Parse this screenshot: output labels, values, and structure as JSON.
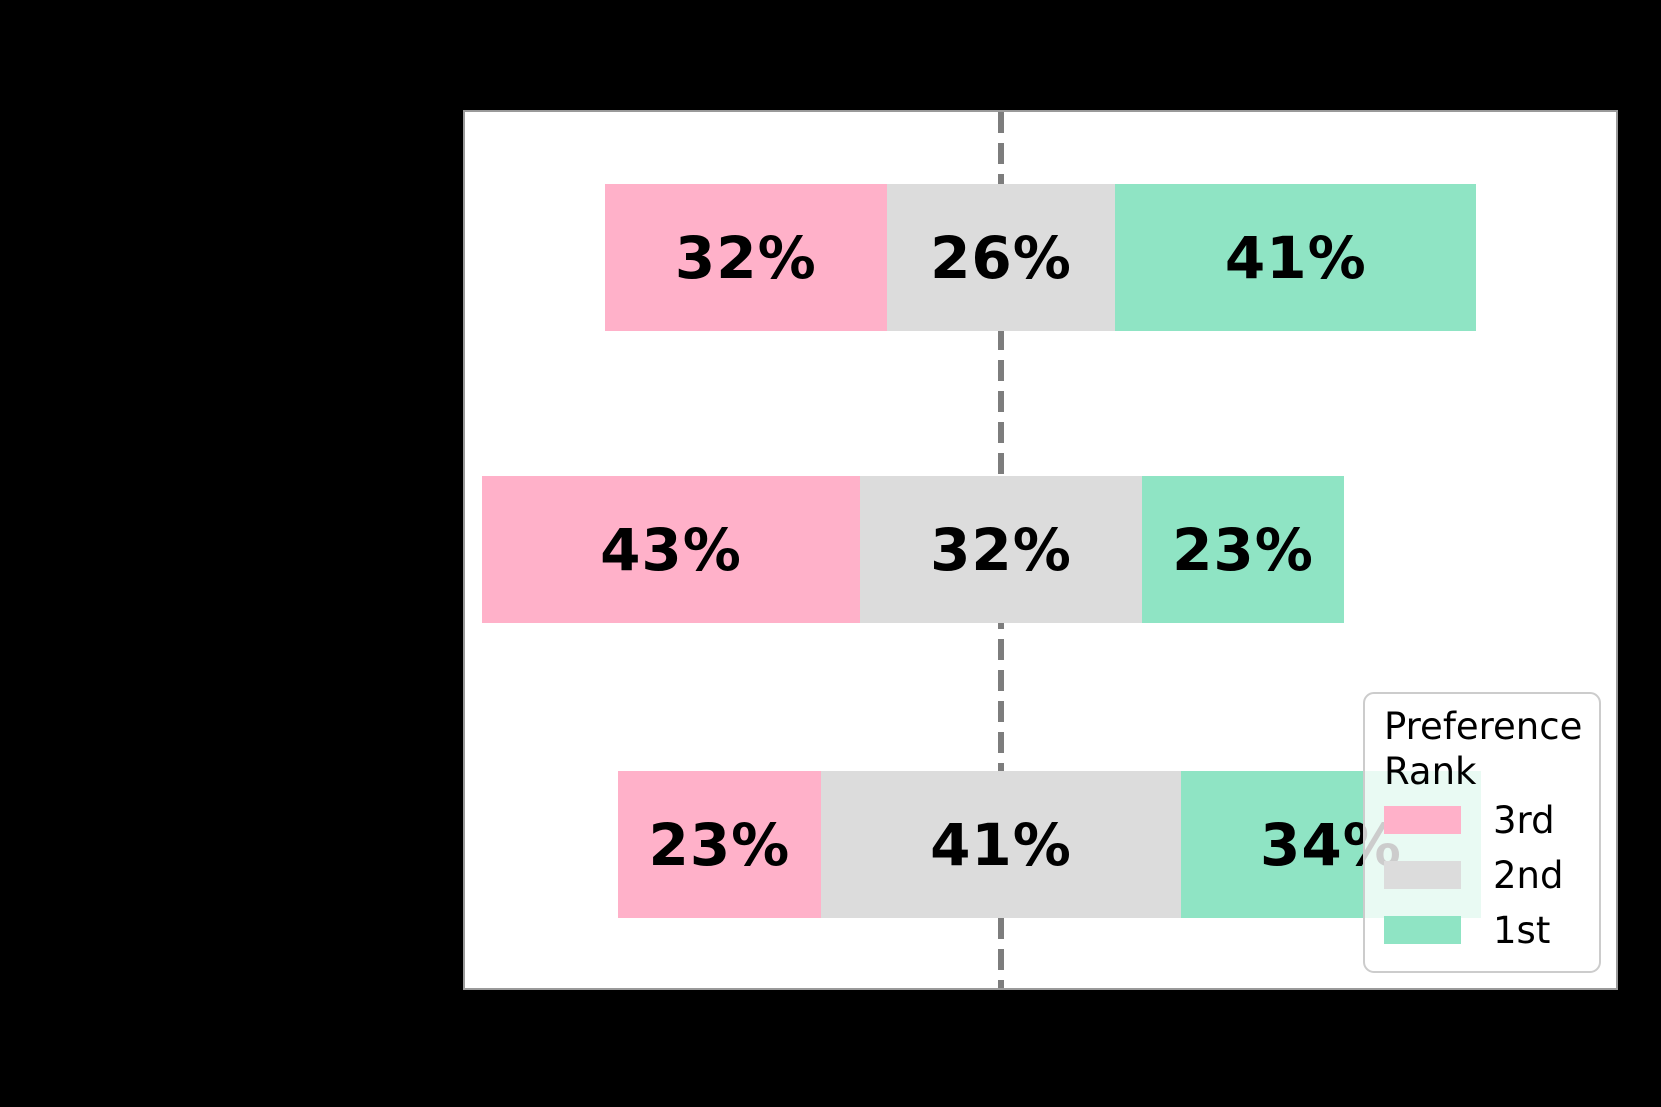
{
  "figure": {
    "background": "#000000"
  },
  "plot": {
    "background": "#ffffff",
    "spine_color": "#9a9a9a"
  },
  "centerline": {
    "style": "dashed",
    "color": "#7d7d7d",
    "orientation": "vertical"
  },
  "legend": {
    "title": "Preference Rank",
    "position": "lower right",
    "items": [
      {
        "label": "3rd",
        "color": "#ffb1c9"
      },
      {
        "label": "2nd",
        "color": "#dcdcdc"
      },
      {
        "label": "1st",
        "color": "#8fe4c4"
      }
    ]
  },
  "chart_data": {
    "type": "bar",
    "subtype": "horizontal-diverging-stacked",
    "orientation": "horizontal",
    "gridlines": false,
    "axis_tick_labels_visible": false,
    "legend_title": "Preference Rank",
    "legend_entries": [
      "3rd",
      "2nd",
      "1st"
    ],
    "colors": {
      "3rd": "#ffb1c9",
      "2nd": "#dcdcdc",
      "1st": "#8fe4c4"
    },
    "alignment": "2nd segment centered on dashed zero line",
    "rows": [
      {
        "segments": [
          {
            "rank": "3rd",
            "value": 32,
            "label": "32%"
          },
          {
            "rank": "2nd",
            "value": 26,
            "label": "26%"
          },
          {
            "rank": "1st",
            "value": 41,
            "label": "41%"
          }
        ]
      },
      {
        "segments": [
          {
            "rank": "3rd",
            "value": 43,
            "label": "43%"
          },
          {
            "rank": "2nd",
            "value": 32,
            "label": "32%"
          },
          {
            "rank": "1st",
            "value": 23,
            "label": "23%"
          }
        ]
      },
      {
        "segments": [
          {
            "rank": "3rd",
            "value": 23,
            "label": "23%"
          },
          {
            "rank": "2nd",
            "value": 41,
            "label": "41%"
          },
          {
            "rank": "1st",
            "value": 34,
            "label": "34%"
          }
        ]
      }
    ]
  }
}
